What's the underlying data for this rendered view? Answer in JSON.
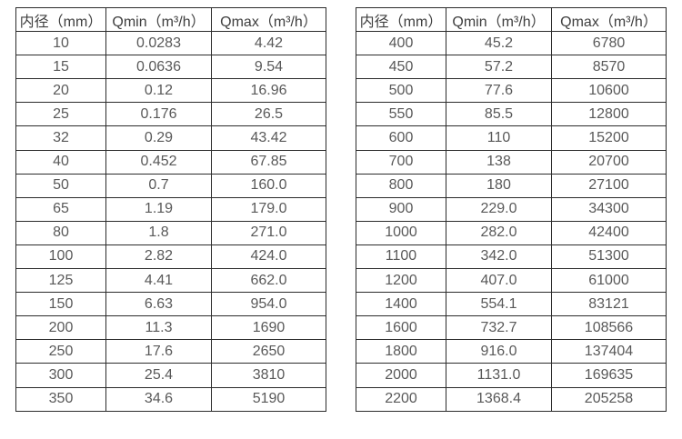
{
  "page": {
    "background_color": "#ffffff",
    "border_color": "#2b2b2b",
    "header_text_color": "#3f3f3f",
    "cell_text_color": "#595959"
  },
  "chart_data": [
    {
      "type": "table",
      "title": "",
      "headers": [
        "内径（mm）",
        "Qmin（m³/h）",
        "Qmax（m³/h）"
      ],
      "rows": [
        [
          "10",
          "0.0283",
          "4.42"
        ],
        [
          "15",
          "0.0636",
          "9.54"
        ],
        [
          "20",
          "0.12",
          "16.96"
        ],
        [
          "25",
          "0.176",
          "26.5"
        ],
        [
          "32",
          "0.29",
          "43.42"
        ],
        [
          "40",
          "0.452",
          "67.85"
        ],
        [
          "50",
          "0.7",
          "160.0"
        ],
        [
          "65",
          "1.19",
          "179.0"
        ],
        [
          "80",
          "1.8",
          "271.0"
        ],
        [
          "100",
          "2.82",
          "424.0"
        ],
        [
          "125",
          "4.41",
          "662.0"
        ],
        [
          "150",
          "6.63",
          "954.0"
        ],
        [
          "200",
          "11.3",
          "1690"
        ],
        [
          "250",
          "17.6",
          "2650"
        ],
        [
          "300",
          "25.4",
          "3810"
        ],
        [
          "350",
          "34.6",
          "5190"
        ]
      ]
    },
    {
      "type": "table",
      "title": "",
      "headers": [
        "内径（mm）",
        "Qmin（m³/h）",
        "Qmax（m³/h）"
      ],
      "rows": [
        [
          "400",
          "45.2",
          "6780"
        ],
        [
          "450",
          "57.2",
          "8570"
        ],
        [
          "500",
          "77.6",
          "10600"
        ],
        [
          "550",
          "85.5",
          "12800"
        ],
        [
          "600",
          "110",
          "15200"
        ],
        [
          "700",
          "138",
          "20700"
        ],
        [
          "800",
          "180",
          "27100"
        ],
        [
          "900",
          "229.0",
          "34300"
        ],
        [
          "1000",
          "282.0",
          "42400"
        ],
        [
          "1100",
          "342.0",
          "51300"
        ],
        [
          "1200",
          "407.0",
          "61000"
        ],
        [
          "1400",
          "554.1",
          "83121"
        ],
        [
          "1600",
          "732.7",
          "108566"
        ],
        [
          "1800",
          "916.0",
          "137404"
        ],
        [
          "2000",
          "1131.0",
          "169635"
        ],
        [
          "2200",
          "1368.4",
          "205258"
        ]
      ]
    }
  ]
}
